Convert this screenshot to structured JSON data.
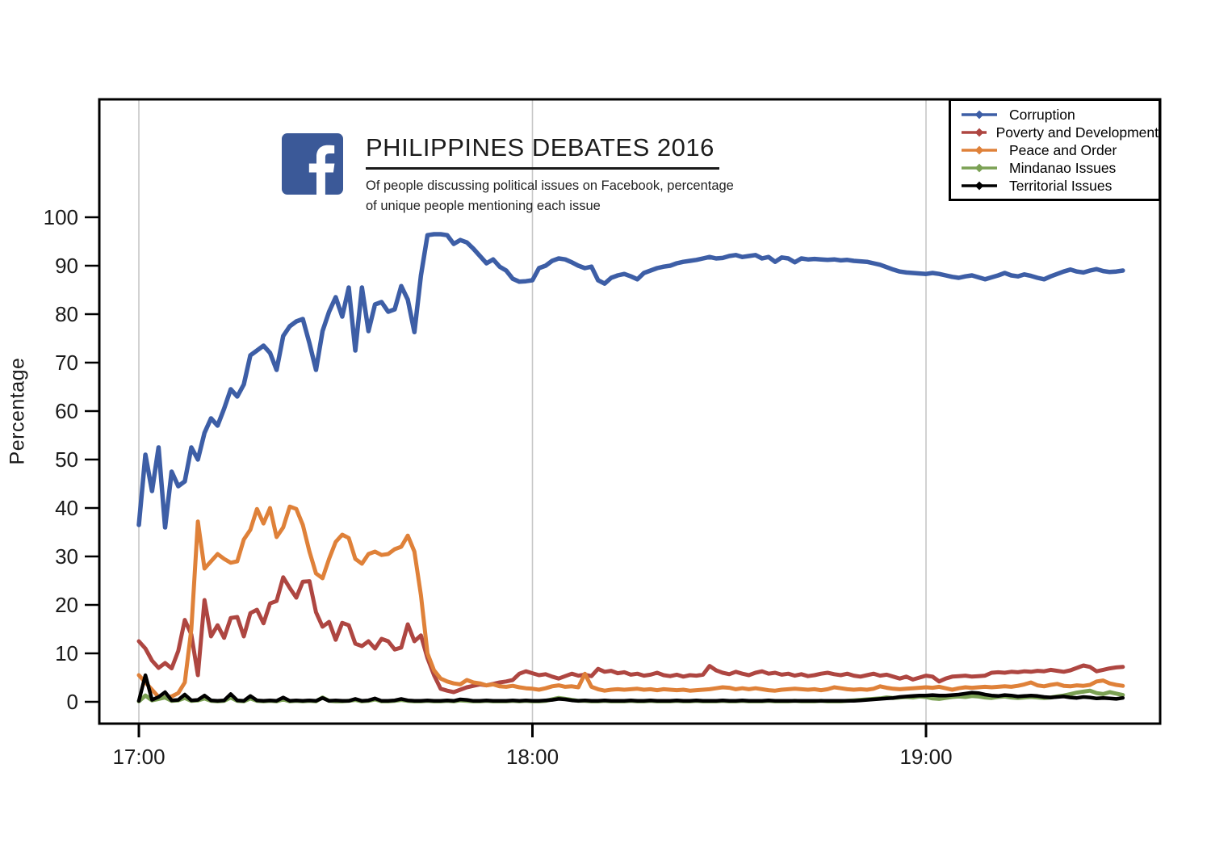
{
  "header": {
    "title": "PHILIPPINES DEBATES 2016",
    "subtitle_line1": "Of people discussing political issues on Facebook, percentage",
    "subtitle_line2": "of unique people mentioning each issue",
    "logo": "facebook-logo",
    "logo_color": "#3b5998"
  },
  "chart_data": {
    "type": "line",
    "title": "PHILIPPINES DEBATES 2016",
    "xlabel": "",
    "ylabel": "Percentage",
    "ylim": [
      0,
      100
    ],
    "y_ticks": [
      0,
      10,
      20,
      30,
      40,
      50,
      60,
      70,
      80,
      90,
      100
    ],
    "x_ticks": [
      {
        "label": "17:00",
        "minute": 0
      },
      {
        "label": "18:00",
        "minute": 60
      },
      {
        "label": "19:00",
        "minute": 120
      }
    ],
    "x_unit": "minutes after 17:00",
    "x_start": 0,
    "x_step": 1,
    "grid": "vertical-hour-lines",
    "gridline_color": "#c6c6c6",
    "legend_position": "top-right",
    "series": [
      {
        "name": "Corruption",
        "color": "#3d5ea6",
        "values": [
          36.5,
          51,
          43.5,
          52.5,
          36,
          47.5,
          44.5,
          45.5,
          52.5,
          50,
          55.5,
          58.5,
          57,
          60.5,
          64.5,
          63,
          65.5,
          71.5,
          72.5,
          73.5,
          72,
          68.5,
          75.5,
          77.5,
          78.5,
          79,
          74,
          68.5,
          76.5,
          80.5,
          83.5,
          79.5,
          85.5,
          72.5,
          85.5,
          76.5,
          82,
          82.5,
          80.5,
          81,
          85.8,
          83,
          76.3,
          88,
          96.3,
          96.5,
          96.5,
          96.3,
          94.5,
          95.3,
          94.8,
          93.5,
          92,
          90.5,
          91.3,
          89.8,
          89,
          87.3,
          86.7,
          86.8,
          87,
          89.5,
          90,
          91,
          91.5,
          91.3,
          90.7,
          90,
          89.5,
          89.8,
          87,
          86.3,
          87.5,
          88,
          88.3,
          87.8,
          87.2,
          88.5,
          89,
          89.5,
          89.8,
          90,
          90.5,
          90.8,
          91,
          91.2,
          91.5,
          91.8,
          91.5,
          91.6,
          92,
          92.2,
          91.8,
          92,
          92.2,
          91.5,
          91.8,
          90.8,
          91.7,
          91.5,
          90.7,
          91.5,
          91.3,
          91.4,
          91.3,
          91.2,
          91.3,
          91.1,
          91.2,
          91,
          90.9,
          90.8,
          90.5,
          90.2,
          89.7,
          89.2,
          88.8,
          88.6,
          88.5,
          88.4,
          88.3,
          88.5,
          88.3,
          88,
          87.7,
          87.5,
          87.8,
          88,
          87.6,
          87.2,
          87.6,
          88,
          88.5,
          88,
          87.8,
          88.2,
          87.9,
          87.5,
          87.2,
          87.8,
          88.3,
          88.8,
          89.2,
          88.8,
          88.6,
          89,
          89.3,
          88.9,
          88.7,
          88.8,
          89
        ]
      },
      {
        "name": "Poverty and Development",
        "color": "#ae4641",
        "values": [
          12.5,
          11,
          8.5,
          7,
          8,
          6.9,
          10.5,
          16.9,
          13.9,
          5.5,
          21,
          13.5,
          15.8,
          13.2,
          17.3,
          17.5,
          13.5,
          18.3,
          19,
          16.2,
          20.3,
          20.8,
          25.7,
          23.5,
          21.5,
          24.8,
          24.9,
          18.5,
          15.5,
          16.5,
          12.8,
          16.3,
          15.8,
          12,
          11.5,
          12.5,
          11,
          13,
          12.5,
          10.8,
          11.2,
          16,
          12.5,
          13.7,
          9,
          5.5,
          2.7,
          2.3,
          2,
          2.5,
          3,
          3.3,
          3.6,
          3.4,
          3.7,
          4,
          4.2,
          4.5,
          5.8,
          6.3,
          5.9,
          5.5,
          5.7,
          5.2,
          4.8,
          5.3,
          5.8,
          5.4,
          5.6,
          5.3,
          6.8,
          6.2,
          6.4,
          5.9,
          6.1,
          5.6,
          5.8,
          5.4,
          5.6,
          6,
          5.5,
          5.3,
          5.6,
          5.2,
          5.5,
          5.4,
          5.6,
          7.4,
          6.5,
          6,
          5.7,
          6.2,
          5.8,
          5.5,
          6,
          6.3,
          5.8,
          6,
          5.6,
          5.8,
          5.4,
          5.7,
          5.3,
          5.5,
          5.8,
          6,
          5.7,
          5.5,
          5.8,
          5.4,
          5.2,
          5.5,
          5.8,
          5.4,
          5.6,
          5.2,
          4.8,
          5.2,
          4.6,
          5,
          5.4,
          5.2,
          4.2,
          4.8,
          5.2,
          5.3,
          5.4,
          5.2,
          5.3,
          5.4,
          6,
          6.1,
          6,
          6.2,
          6.1,
          6.3,
          6.2,
          6.4,
          6.3,
          6.6,
          6.4,
          6.2,
          6.5,
          7,
          7.5,
          7.2,
          6.3,
          6.6,
          6.9,
          7.1,
          7.2
        ]
      },
      {
        "name": "Peace and Order",
        "color": "#df8139",
        "values": [
          5.5,
          4,
          2.5,
          1,
          0.9,
          1.1,
          1.8,
          4,
          15,
          37.2,
          27.5,
          29,
          30.5,
          29.5,
          28.7,
          29,
          33.5,
          35.5,
          39.8,
          36.8,
          40,
          34,
          36,
          40.3,
          39.8,
          36.5,
          31,
          26.5,
          25.5,
          29.5,
          33,
          34.5,
          33.8,
          29.5,
          28.5,
          30.5,
          31,
          30.3,
          30.5,
          31.5,
          32,
          34.3,
          31,
          22,
          10,
          6.5,
          4.8,
          4.2,
          3.8,
          3.6,
          4.5,
          4,
          3.8,
          3.4,
          3.6,
          3.2,
          3.1,
          3.3,
          3,
          2.8,
          2.7,
          2.5,
          2.8,
          3.2,
          3.4,
          3.1,
          3.2,
          3,
          5.8,
          3.1,
          2.6,
          2.3,
          2.5,
          2.6,
          2.5,
          2.6,
          2.7,
          2.5,
          2.6,
          2.4,
          2.6,
          2.5,
          2.4,
          2.5,
          2.3,
          2.4,
          2.5,
          2.6,
          2.8,
          3,
          2.9,
          2.6,
          2.8,
          2.6,
          2.8,
          2.6,
          2.4,
          2.3,
          2.5,
          2.6,
          2.7,
          2.6,
          2.5,
          2.6,
          2.4,
          2.6,
          3,
          2.8,
          2.6,
          2.5,
          2.6,
          2.5,
          2.7,
          3.2,
          2.9,
          2.7,
          2.6,
          2.7,
          2.8,
          2.9,
          3,
          2.9,
          3.1,
          2.8,
          2.5,
          2.8,
          3,
          2.9,
          3,
          3.1,
          3,
          3.1,
          3.2,
          3.1,
          3.3,
          3.6,
          4,
          3.4,
          3.2,
          3.5,
          3.7,
          3.3,
          3.2,
          3.4,
          3.3,
          3.5,
          4.2,
          4.4,
          3.8,
          3.5,
          3.3
        ]
      },
      {
        "name": "Mindanao Issues",
        "color": "#7ba154",
        "values": [
          0.1,
          1.3,
          0.3,
          0.6,
          0.9,
          0.2,
          0.3,
          0.8,
          0.2,
          0.3,
          0.7,
          0.2,
          0.1,
          0.2,
          0.9,
          0.2,
          0.1,
          0.7,
          0.2,
          0.1,
          0.2,
          0.1,
          0.5,
          0.1,
          0.2,
          0.1,
          0.2,
          0.1,
          0.9,
          0.2,
          0.1,
          0.1,
          0.2,
          0.4,
          0.1,
          0.2,
          0.5,
          0.1,
          0.1,
          0.2,
          0.4,
          0.2,
          0.1,
          0.1,
          0.2,
          0.1,
          0.1,
          0.2,
          0.1,
          0.3,
          0.2,
          0.1,
          0.1,
          0.2,
          0.1,
          0.1,
          0.1,
          0.2,
          0.1,
          0.2,
          0.1,
          0.1,
          0.2,
          0.5,
          0.8,
          0.6,
          0.4,
          0.2,
          0.2,
          0.1,
          0.1,
          0.2,
          0.1,
          0.1,
          0.1,
          0.2,
          0.1,
          0.1,
          0.2,
          0.1,
          0.1,
          0.1,
          0.2,
          0.1,
          0.1,
          0.2,
          0.1,
          0.1,
          0.1,
          0.2,
          0.1,
          0.1,
          0.2,
          0.1,
          0.1,
          0.1,
          0.2,
          0.1,
          0.1,
          0.1,
          0.2,
          0.1,
          0.1,
          0.1,
          0.2,
          0.1,
          0.1,
          0.1,
          0.2,
          0.3,
          0.4,
          0.5,
          0.6,
          0.7,
          0.9,
          0.8,
          0.9,
          1,
          0.9,
          1.1,
          1,
          0.7,
          0.6,
          0.8,
          1,
          1.1,
          1,
          1.2,
          1.1,
          0.9,
          0.8,
          1,
          1.1,
          0.9,
          0.8,
          0.9,
          1,
          0.9,
          0.8,
          0.9,
          1.1,
          1.3,
          1.6,
          1.9,
          2.1,
          2.3,
          1.8,
          1.6,
          2,
          1.7,
          1.4
        ]
      },
      {
        "name": "Territorial Issues",
        "color": "#000000",
        "values": [
          0.2,
          5.5,
          0.4,
          1,
          2,
          0.3,
          0.4,
          1.5,
          0.3,
          0.4,
          1.3,
          0.3,
          0.2,
          0.3,
          1.6,
          0.3,
          0.2,
          1.2,
          0.3,
          0.2,
          0.3,
          0.2,
          0.9,
          0.2,
          0.3,
          0.2,
          0.3,
          0.2,
          0.8,
          0.2,
          0.3,
          0.2,
          0.2,
          0.6,
          0.2,
          0.3,
          0.7,
          0.2,
          0.2,
          0.3,
          0.6,
          0.3,
          0.2,
          0.2,
          0.3,
          0.2,
          0.2,
          0.3,
          0.2,
          0.5,
          0.4,
          0.2,
          0.2,
          0.3,
          0.2,
          0.2,
          0.2,
          0.3,
          0.2,
          0.3,
          0.2,
          0.2,
          0.3,
          0.4,
          0.6,
          0.5,
          0.3,
          0.2,
          0.3,
          0.2,
          0.2,
          0.3,
          0.2,
          0.2,
          0.2,
          0.3,
          0.2,
          0.2,
          0.3,
          0.2,
          0.2,
          0.2,
          0.3,
          0.2,
          0.2,
          0.3,
          0.2,
          0.2,
          0.2,
          0.3,
          0.2,
          0.2,
          0.3,
          0.2,
          0.2,
          0.2,
          0.3,
          0.2,
          0.2,
          0.2,
          0.2,
          0.2,
          0.2,
          0.2,
          0.2,
          0.2,
          0.2,
          0.2,
          0.2,
          0.2,
          0.3,
          0.4,
          0.5,
          0.6,
          0.7,
          0.8,
          1,
          1.1,
          1.2,
          1.3,
          1.3,
          1.4,
          1.3,
          1.3,
          1.4,
          1.5,
          1.7,
          1.9,
          1.8,
          1.5,
          1.3,
          1.2,
          1.4,
          1.3,
          1.1,
          1.2,
          1.3,
          1.2,
          1,
          0.9,
          1,
          1.1,
          0.9,
          0.8,
          1,
          0.9,
          0.7,
          0.8,
          0.7,
          0.6,
          0.8
        ]
      }
    ]
  }
}
